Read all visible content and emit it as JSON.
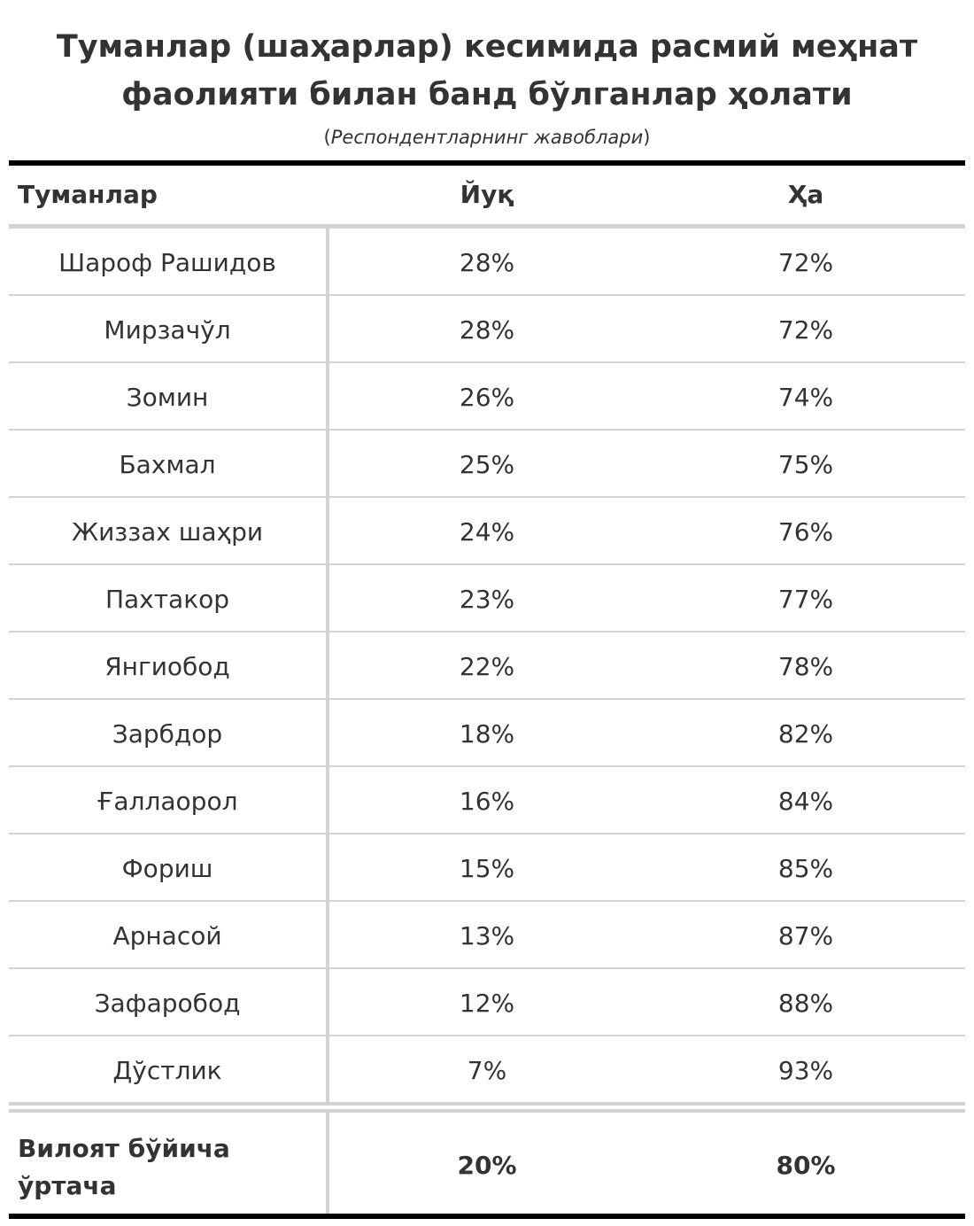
{
  "title_lines": [
    "Туманлар (шаҳарлар) кесимида расмий меҳнат",
    "фаолияти билан банд бўлганлар ҳолати"
  ],
  "subtitle": "Респондентларнинг жавоблари",
  "chart_data": {
    "type": "table",
    "title": "Туманлар (шаҳарлар) кесимида расмий меҳнат фаолияти билан банд бўлганлар ҳолати",
    "subtitle": "Респондентларнинг жавоблари",
    "columns": [
      "Туманлар",
      "Йуқ",
      "Ҳа"
    ],
    "rows": [
      {
        "name": "Шароф Рашидов",
        "no": "28%",
        "yes": "72%"
      },
      {
        "name": "Мирзачўл",
        "no": "28%",
        "yes": "72%"
      },
      {
        "name": "Зомин",
        "no": "26%",
        "yes": "74%"
      },
      {
        "name": "Бахмал",
        "no": "25%",
        "yes": "75%"
      },
      {
        "name": "Жиззах шаҳри",
        "no": "24%",
        "yes": "76%"
      },
      {
        "name": "Пахтакор",
        "no": "23%",
        "yes": "77%"
      },
      {
        "name": "Янгиобод",
        "no": "22%",
        "yes": "78%"
      },
      {
        "name": "Зарбдор",
        "no": "18%",
        "yes": "82%"
      },
      {
        "name": "Ғаллаорол",
        "no": "16%",
        "yes": "84%"
      },
      {
        "name": "Фориш",
        "no": "15%",
        "yes": "85%"
      },
      {
        "name": "Арнасой",
        "no": "13%",
        "yes": "87%"
      },
      {
        "name": "Зафаробод",
        "no": "12%",
        "yes": "88%"
      },
      {
        "name": "Дўстлик",
        "no": "7%",
        "yes": "93%"
      }
    ],
    "total": {
      "name_lines": [
        "Вилоят бўйича",
        "ўртача"
      ],
      "no": "20%",
      "yes": "80%"
    }
  }
}
